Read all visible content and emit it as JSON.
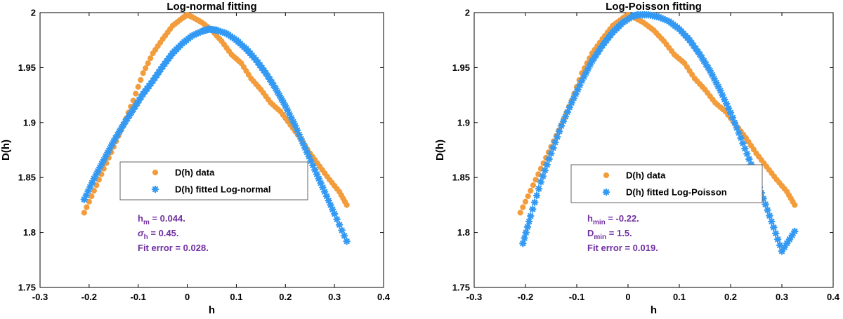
{
  "colors": {
    "data": "#F39C3C",
    "fit": "#3399F3",
    "annotation": "#7030A0",
    "axis": "#000000",
    "legend_border": "#666666"
  },
  "chart_data": [
    {
      "type": "scatter",
      "title": "Log-normal fitting",
      "xlabel": "h",
      "ylabel": "D(h)",
      "xlim": [
        -0.3,
        0.4
      ],
      "ylim": [
        1.75,
        2.0
      ],
      "xticks": [
        -0.3,
        -0.2,
        -0.1,
        0,
        0.1,
        0.2,
        0.3,
        0.4
      ],
      "xtick_labels": [
        "-0.3",
        "-0.2",
        "-0.1",
        "0",
        "0.1",
        "0.2",
        "0.3",
        "0.4"
      ],
      "yticks": [
        1.75,
        1.8,
        1.85,
        1.9,
        1.95,
        2.0
      ],
      "ytick_labels": [
        "1.75",
        "1.8",
        "1.85",
        "1.9",
        "1.95",
        "2"
      ],
      "grid": false,
      "legend_position": "center-left",
      "series": [
        {
          "name": "D(h) data",
          "marker": "circle",
          "x": [
            -0.21,
            -0.19,
            -0.17,
            -0.15,
            -0.13,
            -0.11,
            -0.09,
            -0.07,
            -0.05,
            -0.03,
            -0.01,
            0.0,
            0.01,
            0.03,
            0.05,
            0.07,
            0.09,
            0.11,
            0.13,
            0.15,
            0.17,
            0.19,
            0.21,
            0.23,
            0.25,
            0.27,
            0.29,
            0.31,
            0.325
          ],
          "y": [
            1.818,
            1.838,
            1.858,
            1.878,
            1.898,
            1.92,
            1.945,
            1.963,
            1.976,
            1.988,
            1.995,
            1.998,
            1.996,
            1.991,
            1.984,
            1.974,
            1.962,
            1.954,
            1.94,
            1.93,
            1.918,
            1.91,
            1.898,
            1.886,
            1.872,
            1.86,
            1.848,
            1.837,
            1.825
          ]
        },
        {
          "name": "D(h) fitted Log-normal",
          "marker": "asterisk",
          "x": [
            -0.21,
            -0.19,
            -0.17,
            -0.15,
            -0.13,
            -0.11,
            -0.09,
            -0.07,
            -0.05,
            -0.03,
            -0.01,
            0.01,
            0.03,
            0.044,
            0.06,
            0.08,
            0.1,
            0.12,
            0.14,
            0.16,
            0.18,
            0.2,
            0.22,
            0.24,
            0.26,
            0.28,
            0.3,
            0.325
          ],
          "y": [
            1.83,
            1.849,
            1.866,
            1.883,
            1.898,
            1.912,
            1.926,
            1.938,
            1.951,
            1.963,
            1.972,
            1.979,
            1.983,
            1.985,
            1.984,
            1.981,
            1.975,
            1.967,
            1.957,
            1.945,
            1.931,
            1.915,
            1.897,
            1.877,
            1.857,
            1.837,
            1.817,
            1.792
          ]
        }
      ],
      "annotations": [
        {
          "base": "h",
          "sub": "m",
          "rest": " = 0.044."
        },
        {
          "base": "σ",
          "sub": "h",
          "rest": " =  0.45."
        },
        {
          "base": "Fit error =  0.028.",
          "sub": "",
          "rest": ""
        }
      ]
    },
    {
      "type": "scatter",
      "title": "Log-Poisson fitting",
      "xlabel": "h",
      "ylabel": "D(h)",
      "xlim": [
        -0.3,
        0.4
      ],
      "ylim": [
        1.75,
        2.0
      ],
      "xticks": [
        -0.3,
        -0.2,
        -0.1,
        0,
        0.1,
        0.2,
        0.3,
        0.4
      ],
      "xtick_labels": [
        "-0.3",
        "-0.2",
        "-0.1",
        "0",
        "0.1",
        "0.2",
        "0.3",
        "0.4"
      ],
      "yticks": [
        1.75,
        1.8,
        1.85,
        1.9,
        1.95,
        2.0
      ],
      "ytick_labels": [
        "1.75",
        "1.8",
        "1.85",
        "1.9",
        "1.95",
        "2"
      ],
      "grid": false,
      "legend_position": "center",
      "series": [
        {
          "name": "D(h) data",
          "marker": "circle",
          "x": [
            -0.21,
            -0.19,
            -0.17,
            -0.15,
            -0.13,
            -0.11,
            -0.09,
            -0.07,
            -0.05,
            -0.03,
            -0.01,
            0.0,
            0.01,
            0.03,
            0.05,
            0.07,
            0.09,
            0.11,
            0.13,
            0.15,
            0.17,
            0.19,
            0.21,
            0.23,
            0.25,
            0.27,
            0.29,
            0.31,
            0.325
          ],
          "y": [
            1.818,
            1.838,
            1.858,
            1.878,
            1.898,
            1.92,
            1.945,
            1.963,
            1.976,
            1.988,
            1.995,
            1.998,
            1.996,
            1.991,
            1.984,
            1.974,
            1.962,
            1.954,
            1.94,
            1.93,
            1.918,
            1.91,
            1.898,
            1.886,
            1.872,
            1.86,
            1.848,
            1.837,
            1.825
          ]
        },
        {
          "name": "D(h) fitted Log-Poisson",
          "marker": "asterisk",
          "x": [
            -0.205,
            -0.19,
            -0.17,
            -0.15,
            -0.13,
            -0.11,
            -0.09,
            -0.07,
            -0.05,
            -0.03,
            -0.01,
            0.01,
            0.02,
            0.04,
            0.06,
            0.08,
            0.1,
            0.12,
            0.14,
            0.16,
            0.18,
            0.2,
            0.22,
            0.24,
            0.26,
            0.28,
            0.3,
            0.325
          ],
          "y": [
            1.79,
            1.815,
            1.846,
            1.872,
            1.897,
            1.918,
            1.938,
            1.956,
            1.97,
            1.982,
            1.991,
            1.997,
            1.998,
            1.998,
            1.996,
            1.992,
            1.985,
            1.975,
            1.962,
            1.947,
            1.929,
            1.909,
            1.886,
            1.862,
            1.836,
            1.81,
            1.783,
            1.801
          ]
        }
      ],
      "annotations": [
        {
          "base": "h",
          "sub": "min",
          "rest": " = -0.22."
        },
        {
          "base": "D",
          "sub": "min",
          "rest": " = 1.5."
        },
        {
          "base": "Fit error =  0.019.",
          "sub": "",
          "rest": ""
        }
      ]
    }
  ]
}
